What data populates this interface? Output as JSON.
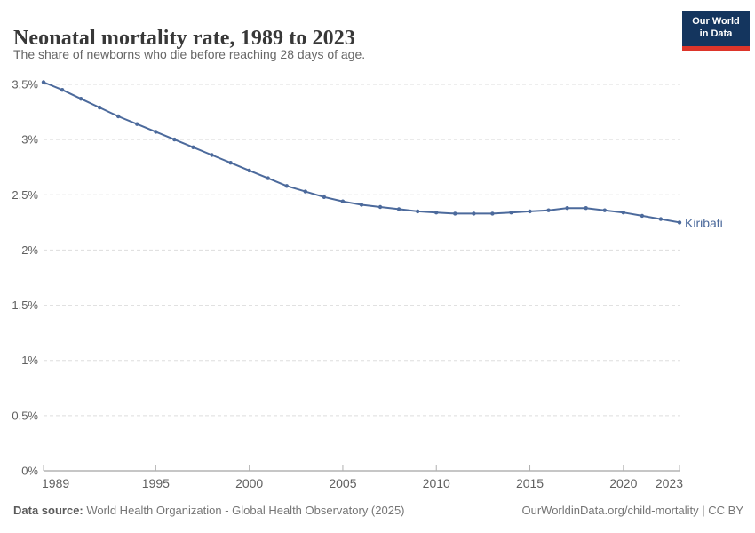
{
  "header": {
    "title": "Neonatal mortality rate, 1989 to 2023",
    "subtitle": "The share of newborns who die before reaching 28 days of age.",
    "logo": {
      "line1": "Our World",
      "line2": "in Data"
    }
  },
  "chart_data": {
    "type": "line",
    "title": "Neonatal mortality rate, 1989 to 2023",
    "subtitle": "The share of newborns who die before reaching 28 days of age.",
    "x": [
      1989,
      1990,
      1991,
      1992,
      1993,
      1994,
      1995,
      1996,
      1997,
      1998,
      1999,
      2000,
      2001,
      2002,
      2003,
      2004,
      2005,
      2006,
      2007,
      2008,
      2009,
      2010,
      2011,
      2012,
      2013,
      2014,
      2015,
      2016,
      2017,
      2018,
      2019,
      2020,
      2021,
      2022,
      2023
    ],
    "series": [
      {
        "name": "Kiribati",
        "values": [
          3.52,
          3.45,
          3.37,
          3.29,
          3.21,
          3.14,
          3.07,
          3.0,
          2.93,
          2.86,
          2.79,
          2.72,
          2.65,
          2.58,
          2.53,
          2.48,
          2.44,
          2.41,
          2.39,
          2.37,
          2.35,
          2.34,
          2.33,
          2.33,
          2.33,
          2.34,
          2.35,
          2.36,
          2.38,
          2.38,
          2.36,
          2.34,
          2.31,
          2.28,
          2.25
        ]
      }
    ],
    "unit": "%",
    "xlabel": "",
    "ylabel": "",
    "ylim": [
      0,
      3.5
    ],
    "grid": true,
    "legend_position": "end-of-line-label",
    "y_ticks": [
      {
        "value": 0,
        "label": "0%"
      },
      {
        "value": 0.5,
        "label": "0.5%"
      },
      {
        "value": 1,
        "label": "1%"
      },
      {
        "value": 1.5,
        "label": "1.5%"
      },
      {
        "value": 2,
        "label": "2%"
      },
      {
        "value": 2.5,
        "label": "2.5%"
      },
      {
        "value": 3,
        "label": "3%"
      },
      {
        "value": 3.5,
        "label": "3.5%"
      }
    ],
    "x_ticks": [
      1989,
      1995,
      2000,
      2005,
      2010,
      2015,
      2020,
      2023
    ]
  },
  "footer": {
    "source_label": "Data source:",
    "source_text": " World Health Organization - Global Health Observatory (2025)",
    "link_text": "OurWorldinData.org/child-mortality | CC BY"
  },
  "colors": {
    "accent": "#4c6a9c",
    "grid": "#dddddd",
    "axis": "#8c8c8c",
    "tick": "#b0b0b0",
    "tick_text": "#606060",
    "logo_navy": "#14355e",
    "logo_red": "#dd352a"
  }
}
